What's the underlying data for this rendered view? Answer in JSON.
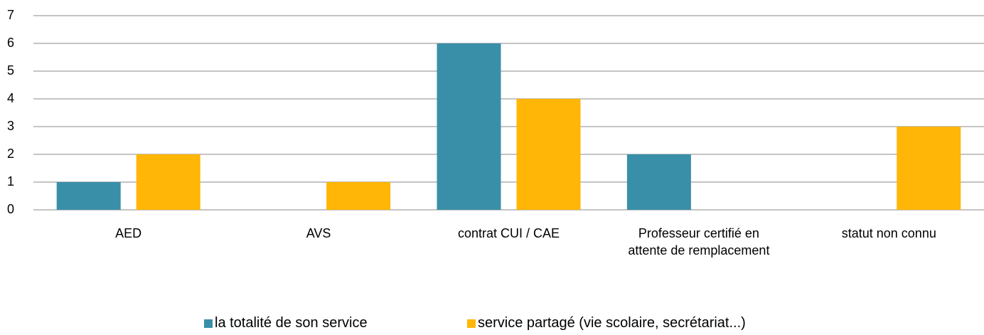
{
  "chart_data": {
    "type": "bar",
    "categories": [
      "AED",
      "AVS",
      "contrat CUI / CAE",
      "Professeur certifié en attente de remplacement",
      "statut non connu"
    ],
    "series": [
      {
        "name": "la totalité de son service",
        "color": "#3a8fa8",
        "values": [
          1,
          0,
          6,
          2,
          0
        ]
      },
      {
        "name": "service partagé (vie scolaire, secrétariat...)",
        "color": "#ffb606",
        "values": [
          2,
          1,
          4,
          0,
          3
        ]
      }
    ],
    "ylim": [
      0,
      7
    ],
    "yticks": [
      0,
      1,
      2,
      3,
      4,
      5,
      6,
      7
    ],
    "grid": true,
    "legend": "bottom"
  }
}
